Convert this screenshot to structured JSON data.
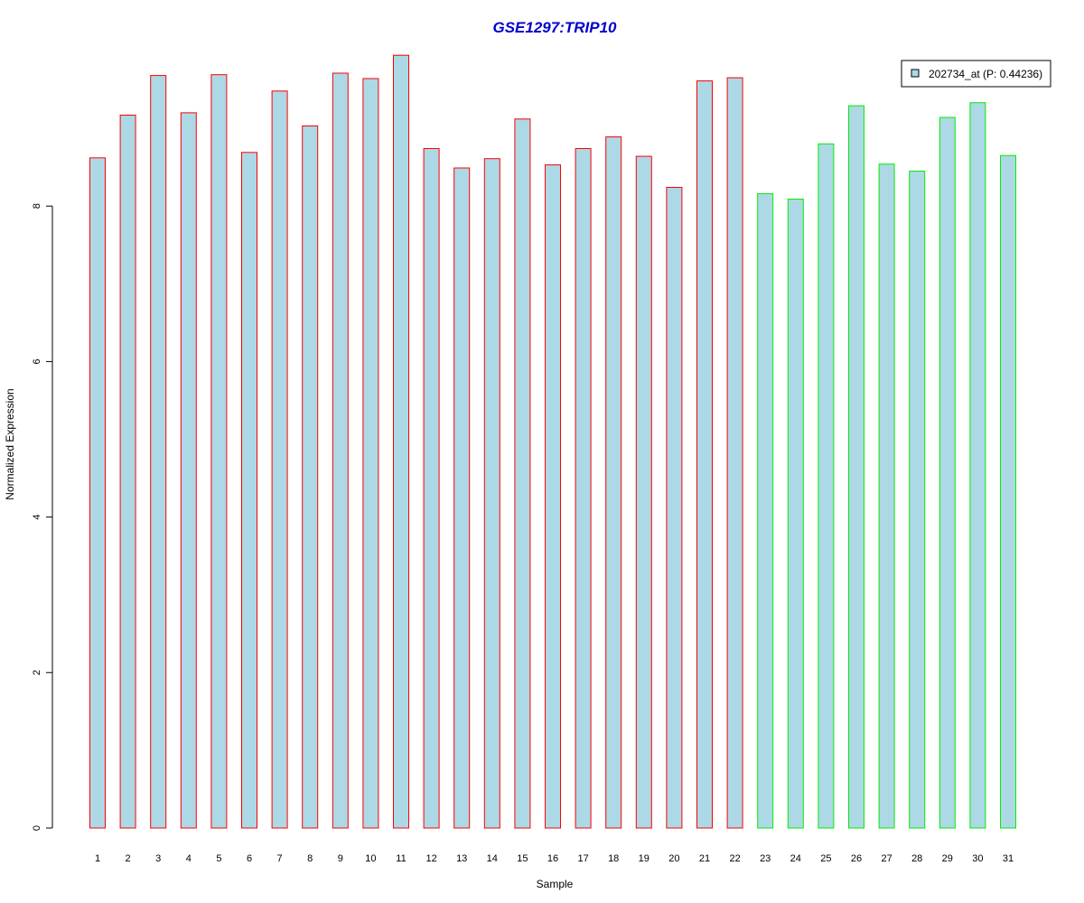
{
  "chart_data": {
    "type": "bar",
    "title": "GSE1297:TRIP10",
    "xlabel": "Sample",
    "ylabel": "Normalized Expression",
    "ylim": [
      0,
      10
    ],
    "yticks": [
      "0",
      "2",
      "4",
      "6",
      "8"
    ],
    "categories": [
      "1",
      "2",
      "3",
      "4",
      "5",
      "6",
      "7",
      "8",
      "9",
      "10",
      "11",
      "12",
      "13",
      "14",
      "15",
      "16",
      "17",
      "18",
      "19",
      "20",
      "21",
      "22",
      "23",
      "24",
      "25",
      "26",
      "27",
      "28",
      "29",
      "30",
      "31"
    ],
    "values": [
      8.62,
      9.17,
      9.68,
      9.2,
      9.69,
      8.69,
      9.48,
      9.03,
      9.71,
      9.64,
      9.94,
      8.74,
      8.49,
      8.61,
      9.12,
      8.53,
      8.74,
      8.89,
      8.64,
      8.24,
      9.61,
      9.65,
      8.16,
      8.09,
      8.8,
      9.29,
      8.54,
      8.45,
      9.14,
      9.33,
      8.65
    ],
    "groups": [
      "red",
      "red",
      "red",
      "red",
      "red",
      "red",
      "red",
      "red",
      "red",
      "red",
      "red",
      "red",
      "red",
      "red",
      "red",
      "red",
      "red",
      "red",
      "red",
      "red",
      "red",
      "red",
      "green",
      "green",
      "green",
      "green",
      "green",
      "green",
      "green",
      "green",
      "green"
    ],
    "legend": {
      "label": "202734_at (P: 0.44236)",
      "placement": "top-right"
    },
    "grid": false,
    "colors": {
      "bar_fill": "#add8e6",
      "red": "#ff0000",
      "green": "#00ee00",
      "title": "#0000cd",
      "axis": "#000000"
    }
  }
}
